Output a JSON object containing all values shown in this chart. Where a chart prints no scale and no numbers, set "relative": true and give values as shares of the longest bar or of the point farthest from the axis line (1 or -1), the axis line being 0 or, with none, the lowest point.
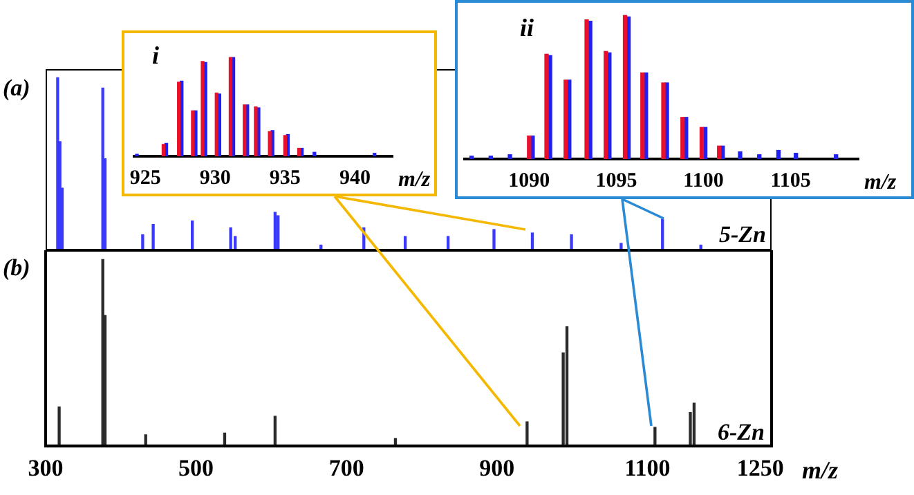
{
  "chart_data": [
    {
      "type": "bar",
      "relative": true,
      "tick_labels": false,
      "xlim": [
        300,
        1265
      ],
      "color": "#3a3aff",
      "x": [
        316,
        319,
        322,
        376,
        379,
        429,
        443,
        495,
        546,
        552,
        605,
        609,
        666,
        723,
        778,
        835,
        896,
        947,
        999,
        1065,
        1120,
        1171
      ],
      "values": [
        1.0,
        0.63,
        0.36,
        0.94,
        0.53,
        0.09,
        0.15,
        0.17,
        0.13,
        0.08,
        0.22,
        0.2,
        0.03,
        0.13,
        0.08,
        0.08,
        0.12,
        0.1,
        0.09,
        0.04,
        0.18,
        0.03
      ],
      "annotations": [
        "(a)",
        "5-Zn"
      ]
    },
    {
      "type": "bar",
      "relative": true,
      "tick_labels": "x",
      "xlim": [
        300,
        1265
      ],
      "xticks": [
        300,
        500,
        700,
        900,
        1100,
        1250
      ],
      "xlabel": "m/z",
      "color": "#2b2b2b",
      "x": [
        318,
        376,
        379,
        433,
        538,
        605,
        765,
        940,
        988,
        993,
        1110,
        1157,
        1162
      ],
      "values": [
        0.21,
        1.0,
        0.7,
        0.06,
        0.07,
        0.16,
        0.04,
        0.13,
        0.5,
        0.64,
        0.1,
        0.18,
        0.23
      ],
      "annotations": [
        "(b)",
        "6-Zn"
      ]
    },
    {
      "type": "bar",
      "title": "i",
      "relative": true,
      "tick_labels": "x",
      "xlim": [
        924.2,
        942.7
      ],
      "xticks": [
        925,
        930,
        935,
        940
      ],
      "xlabel": "m/z",
      "series": [
        {
          "color": "#e8102a",
          "x": [
            926.3,
            927.4,
            928.4,
            929.1,
            930.1,
            931.1,
            932.1,
            932.9,
            933.9,
            935.0,
            936.0
          ],
          "values": [
            0.12,
            0.75,
            0.46,
            0.96,
            0.64,
            1.0,
            0.52,
            0.5,
            0.25,
            0.21,
            0.08
          ]
        },
        {
          "color": "#2020f0",
          "x": [
            924.4,
            926.5,
            927.6,
            928.6,
            929.3,
            930.3,
            931.3,
            932.3,
            933.1,
            934.1,
            935.2,
            936.2,
            937.1,
            941.4
          ],
          "values": [
            0.02,
            0.13,
            0.76,
            0.46,
            0.95,
            0.63,
            1.0,
            0.52,
            0.49,
            0.26,
            0.22,
            0.08,
            0.04,
            0.03
          ]
        }
      ]
    },
    {
      "type": "bar",
      "title": "ii",
      "relative": true,
      "tick_labels": "x",
      "xlim": [
        1086.3,
        1108.9
      ],
      "xticks": [
        1090,
        1095,
        1100,
        1105
      ],
      "xlabel": "m/z",
      "series": [
        {
          "color": "#e8102a",
          "x": [
            1090.0,
            1091.0,
            1092.1,
            1093.3,
            1094.4,
            1095.5,
            1096.5,
            1097.7,
            1098.8,
            1099.9,
            1100.9
          ],
          "values": [
            0.16,
            0.73,
            0.55,
            0.97,
            0.75,
            1.0,
            0.6,
            0.53,
            0.29,
            0.22,
            0.09
          ]
        },
        {
          "color": "#2020f0",
          "x": [
            1086.7,
            1087.8,
            1088.9,
            1090.2,
            1091.2,
            1092.3,
            1093.5,
            1094.6,
            1095.7,
            1096.7,
            1097.9,
            1099.0,
            1100.1,
            1101.1,
            1102.1,
            1103.2,
            1104.3,
            1105.3,
            1107.6
          ],
          "values": [
            0.02,
            0.02,
            0.03,
            0.16,
            0.72,
            0.55,
            0.96,
            0.74,
            0.99,
            0.6,
            0.53,
            0.29,
            0.22,
            0.09,
            0.05,
            0.03,
            0.06,
            0.04,
            0.03
          ]
        }
      ]
    }
  ]
}
